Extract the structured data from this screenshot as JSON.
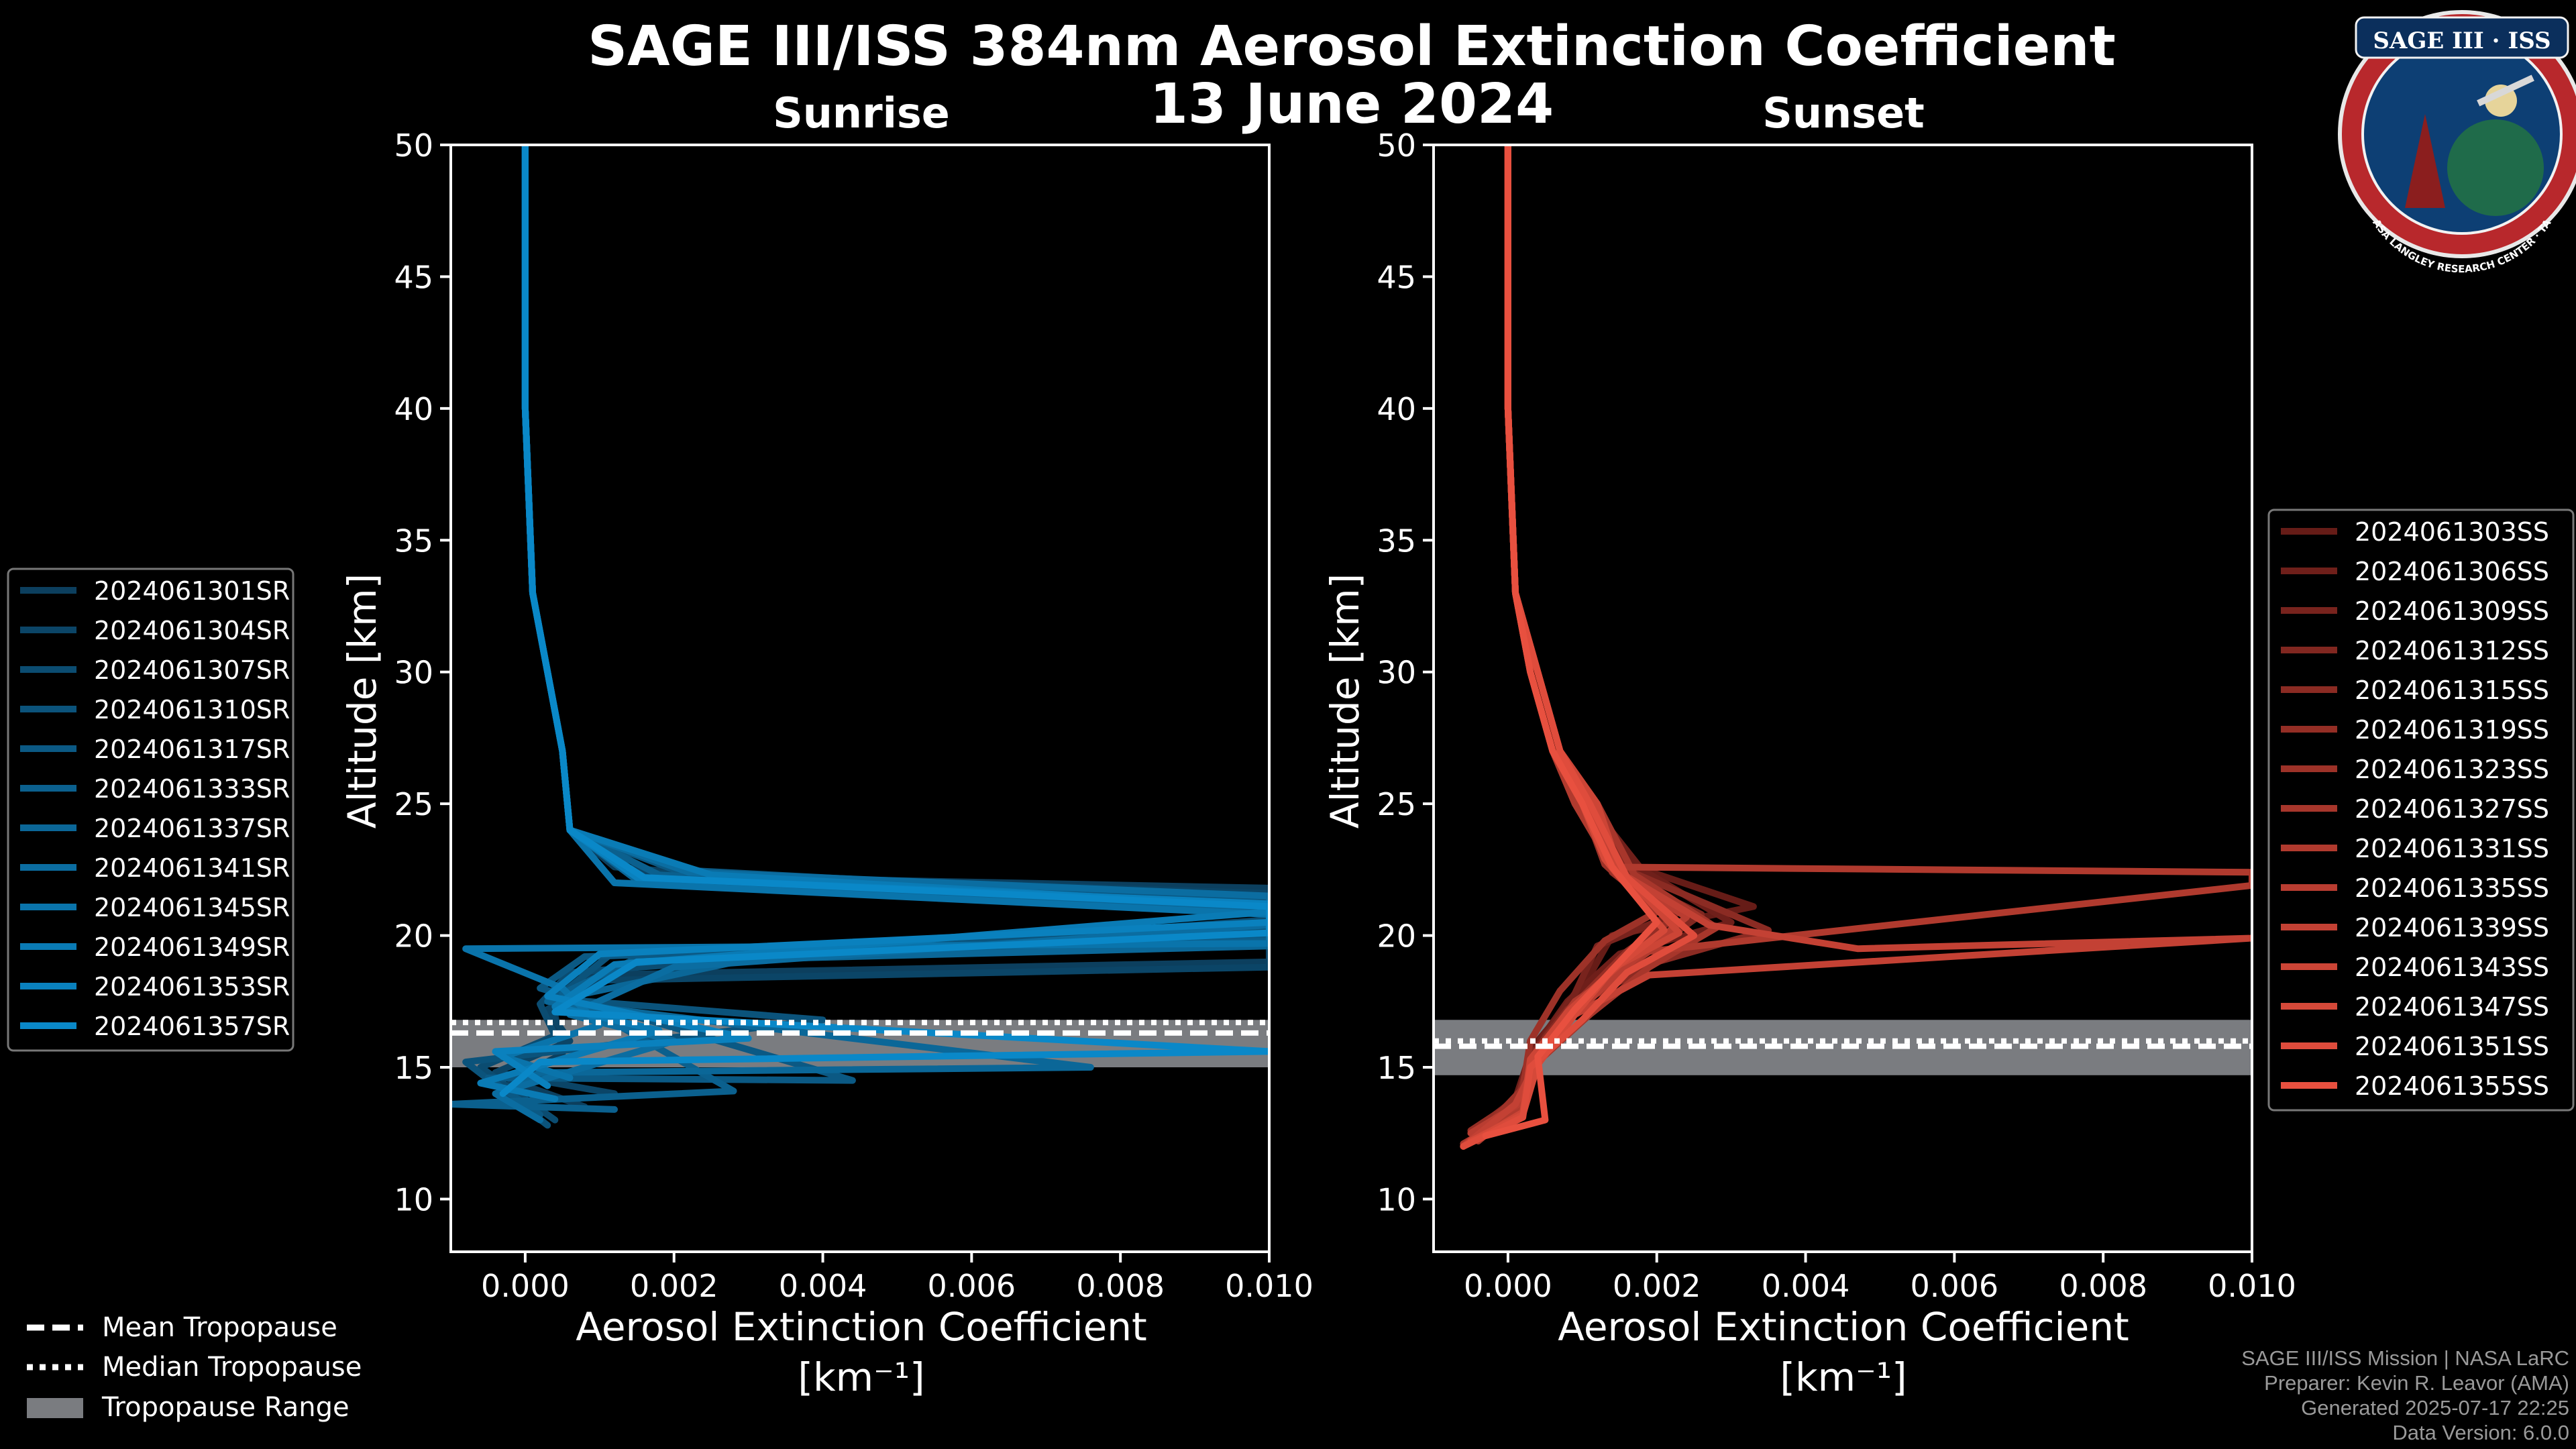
{
  "title_line1": "SAGE III/ISS 384nm Aerosol Extinction Coefficient",
  "title_line2": "13 June 2024",
  "logo": {
    "text": "SAGE III · ISS",
    "ring_text": "BALL · NASA LANGLEY RESEARCH CENTER · TAS-I · ESA",
    "icon": "mission-patch-icon"
  },
  "colors": {
    "sunrise_base": "#0a88c8",
    "sunset_base": "#e8503f",
    "tropopause_range": "#7a7c80",
    "background": "#000000"
  },
  "tropopause_legend": {
    "mean": "Mean Tropopause",
    "median": "Median Tropopause",
    "range": "Tropopause Range"
  },
  "credits": [
    "SAGE III/ISS Mission | NASA LaRC",
    "Preparer: Kevin R. Leavor (AMA)",
    "Generated 2025-07-17 22:25",
    "Data Version: 6.0.0"
  ],
  "chart_data": [
    {
      "type": "line",
      "title": "Sunrise",
      "xlabel": "Aerosol Extinction Coefficient",
      "xlabel_units": "[km⁻¹]",
      "ylabel": "Altitude [km]",
      "xlim": [
        -0.001,
        0.01
      ],
      "ylim": [
        8,
        50
      ],
      "xticks": [
        0.0,
        0.002,
        0.004,
        0.006,
        0.008,
        0.01
      ],
      "xtick_labels": [
        "0.000",
        "0.002",
        "0.004",
        "0.006",
        "0.008",
        "0.010"
      ],
      "yticks": [
        10,
        15,
        20,
        25,
        30,
        35,
        40,
        45,
        50
      ],
      "tropopause": {
        "mean": 16.3,
        "median": 16.7,
        "range": [
          15.0,
          16.8
        ]
      },
      "series": [
        {
          "name": "2024061301SR",
          "x": [
            0.0,
            0.0,
            0.0001,
            0.0003,
            0.0005,
            0.0006,
            0.0012,
            0.003,
            0.01,
            0.01,
            0.0008,
            0.0004,
            0.0005,
            -0.0002,
            0.0008
          ],
          "y": [
            50,
            40,
            33,
            30,
            27,
            24,
            22.6,
            22.2,
            21.8,
            19.0,
            18.5,
            17.0,
            15.5,
            14.5,
            13.5
          ]
        },
        {
          "name": "2024061304SR",
          "x": [
            0.0,
            0.0,
            0.0001,
            0.0003,
            0.0005,
            0.0006,
            0.0014,
            0.01,
            0.01,
            0.001,
            0.0003,
            0.0006,
            -0.0004,
            0.0012
          ],
          "y": [
            50,
            40,
            33,
            30,
            27,
            24,
            22.4,
            21.6,
            18.8,
            18.3,
            17.2,
            16.0,
            14.8,
            14.0
          ]
        },
        {
          "name": "2024061307SR",
          "x": [
            0.0,
            0.0,
            0.0001,
            0.0003,
            0.0005,
            0.0006,
            0.0016,
            0.01,
            0.01,
            0.0006,
            0.0002,
            0.0004,
            -0.0006,
            0.0004
          ],
          "y": [
            50,
            40,
            33,
            30,
            27,
            24,
            22.2,
            21.4,
            20.6,
            18.6,
            17.4,
            16.2,
            15.0,
            13.0
          ]
        },
        {
          "name": "2024061310SR",
          "x": [
            0.0,
            0.0,
            0.0001,
            0.0003,
            0.0005,
            0.0006,
            0.0012,
            0.01,
            0.01,
            0.0012,
            0.0004,
            0.004,
            -0.0008,
            0.0003
          ],
          "y": [
            50,
            40,
            33,
            30,
            27,
            24,
            22.0,
            21.2,
            20.2,
            19.4,
            17.6,
            16.8,
            15.2,
            12.8
          ]
        },
        {
          "name": "2024061317SR",
          "x": [
            0.0,
            0.0,
            0.0001,
            0.0003,
            0.0005,
            0.0006,
            0.002,
            0.01,
            0.01,
            0.0008,
            0.0002,
            0.0044,
            -0.0005,
            0.0002
          ],
          "y": [
            50,
            40,
            33,
            30,
            27,
            24,
            22.5,
            21.3,
            20.0,
            19.2,
            18.0,
            14.5,
            14.6,
            13.2
          ]
        },
        {
          "name": "2024061333SR",
          "x": [
            0.0,
            0.0,
            0.0001,
            0.0003,
            0.0005,
            0.0006,
            0.0018,
            0.01,
            0.01,
            0.0014,
            0.0005,
            0.0028,
            -0.001,
            0.0012
          ],
          "y": [
            50,
            40,
            33,
            30,
            27,
            24,
            22.3,
            21.0,
            19.8,
            19.0,
            17.8,
            14.1,
            13.6,
            13.4
          ]
        },
        {
          "name": "2024061337SR",
          "x": [
            0.0,
            0.0,
            0.0001,
            0.0003,
            0.0005,
            0.0006,
            0.0015,
            0.01,
            0.01,
            0.003,
            0.0003,
            0.0076,
            0.0002,
            -0.0002
          ],
          "y": [
            50,
            40,
            33,
            30,
            27,
            24,
            22.1,
            21.0,
            19.6,
            19.1,
            17.5,
            15.0,
            14.8,
            14.2
          ]
        },
        {
          "name": "2024061341SR",
          "x": [
            0.0,
            0.0,
            0.0001,
            0.0003,
            0.0005,
            0.0006,
            0.0022,
            0.01,
            0.01,
            0.002,
            0.0006,
            0.002,
            -0.0004,
            0.0002
          ],
          "y": [
            50,
            40,
            33,
            30,
            27,
            24,
            22.4,
            21.5,
            20.4,
            18.8,
            17.0,
            16.0,
            14.0,
            13.0
          ]
        },
        {
          "name": "2024061345SR",
          "x": [
            0.0,
            0.0,
            0.0001,
            0.0003,
            0.0005,
            0.0006,
            0.0012,
            0.01,
            0.01,
            -0.0008,
            0.0005,
            0.001,
            -0.0003,
            0.0006
          ],
          "y": [
            50,
            40,
            33,
            30,
            27,
            24,
            22.0,
            20.8,
            19.7,
            19.5,
            18.0,
            16.6,
            15.4,
            14.6
          ]
        },
        {
          "name": "2024061349SR",
          "x": [
            0.0,
            0.0,
            0.0001,
            0.0003,
            0.0005,
            0.0006,
            0.0025,
            0.01,
            0.01,
            0.0012,
            0.0004,
            0.0018,
            -0.0006,
            0.0004
          ],
          "y": [
            50,
            40,
            33,
            30,
            27,
            24,
            22.3,
            21.1,
            20.9,
            18.9,
            17.3,
            16.4,
            14.4,
            13.8
          ]
        },
        {
          "name": "2024061353SR",
          "x": [
            0.0,
            0.0,
            0.0001,
            0.0003,
            0.0005,
            0.0006,
            0.0015,
            0.01,
            0.01,
            0.001,
            0.0003,
            0.003,
            -0.0004,
            0.0003
          ],
          "y": [
            50,
            40,
            33,
            30,
            27,
            24,
            22.2,
            21.2,
            20.5,
            19.3,
            17.7,
            16.1,
            15.6,
            14.3
          ]
        },
        {
          "name": "2024061357SR",
          "x": [
            0.0,
            0.0,
            0.0001,
            0.0003,
            0.0005,
            0.0006,
            0.0016,
            0.01,
            0.01,
            0.0015,
            0.0004,
            0.01,
            0.0002,
            -0.0003
          ],
          "y": [
            50,
            40,
            33,
            30,
            27,
            24,
            22.2,
            21.1,
            20.1,
            19.0,
            17.1,
            15.6,
            15.2,
            14.0
          ]
        }
      ]
    },
    {
      "type": "line",
      "title": "Sunset",
      "xlabel": "Aerosol Extinction Coefficient",
      "xlabel_units": "[km⁻¹]",
      "ylabel": "Altitude [km]",
      "xlim": [
        -0.001,
        0.01
      ],
      "ylim": [
        8,
        50
      ],
      "xticks": [
        0.0,
        0.002,
        0.004,
        0.006,
        0.008,
        0.01
      ],
      "xtick_labels": [
        "0.000",
        "0.002",
        "0.004",
        "0.006",
        "0.008",
        "0.010"
      ],
      "yticks": [
        10,
        15,
        20,
        25,
        30,
        35,
        40,
        45,
        50
      ],
      "tropopause": {
        "mean": 15.8,
        "median": 16.0,
        "range": [
          14.7,
          16.8
        ]
      },
      "series": [
        {
          "name": "2024061303SS",
          "x": [
            0.0,
            0.0,
            0.0001,
            0.0003,
            0.0006,
            0.001,
            0.0013,
            0.0033,
            0.0014,
            0.001,
            0.0004,
            0.0002,
            -0.0004
          ],
          "y": [
            50,
            40,
            33,
            30,
            27,
            25,
            23.0,
            21.1,
            20.0,
            18.0,
            16.0,
            14.0,
            12.2
          ]
        },
        {
          "name": "2024061306SS",
          "x": [
            0.0,
            0.0,
            0.0001,
            0.0004,
            0.0007,
            0.0011,
            0.0018,
            0.003,
            0.0015,
            0.0008,
            0.0003,
            0.0001,
            -0.0005
          ],
          "y": [
            50,
            40,
            33,
            30,
            27,
            25,
            22.5,
            20.5,
            19.3,
            17.5,
            15.5,
            13.8,
            12.5
          ]
        },
        {
          "name": "2024061309SS",
          "x": [
            0.0,
            0.0,
            0.0001,
            0.0003,
            0.0006,
            0.0009,
            0.0014,
            0.0024,
            0.0012,
            0.0009,
            0.0005,
            0.0003,
            -0.0003
          ],
          "y": [
            50,
            40,
            33,
            30,
            27,
            25,
            22.8,
            21.0,
            19.6,
            17.8,
            16.2,
            14.4,
            12.8
          ]
        },
        {
          "name": "2024061312SS",
          "x": [
            0.0,
            0.0,
            0.0001,
            0.0004,
            0.0007,
            0.0012,
            0.0016,
            0.0026,
            0.0018,
            0.001,
            0.0004,
            0.0002,
            -0.0006
          ],
          "y": [
            50,
            40,
            33,
            30,
            27,
            25,
            22.2,
            20.8,
            19.2,
            17.6,
            15.8,
            13.6,
            12.0
          ]
        },
        {
          "name": "2024061315SS",
          "x": [
            0.0,
            0.0,
            0.0001,
            0.0003,
            0.0006,
            0.001,
            0.0015,
            0.0035,
            0.002,
            0.0008,
            0.0003,
            0.0001,
            -0.0004
          ],
          "y": [
            50,
            40,
            33,
            30,
            27,
            25,
            22.6,
            20.2,
            19.0,
            17.2,
            15.4,
            13.5,
            12.3
          ]
        },
        {
          "name": "2024061319SS",
          "x": [
            0.0,
            0.0,
            0.0001,
            0.0004,
            0.0007,
            0.0011,
            0.0014,
            0.0022,
            0.0016,
            0.0009,
            0.0004,
            0.0002,
            -0.0005
          ],
          "y": [
            50,
            40,
            33,
            30,
            27,
            25,
            22.4,
            20.6,
            19.4,
            17.4,
            15.6,
            13.9,
            12.6
          ]
        },
        {
          "name": "2024061323SS",
          "x": [
            0.0,
            0.0,
            0.0001,
            0.0003,
            0.0006,
            0.001,
            0.0013,
            0.002,
            0.0013,
            0.0007,
            0.0003,
            0.0002,
            -0.0004
          ],
          "y": [
            50,
            40,
            33,
            30,
            27,
            25,
            22.7,
            20.9,
            19.8,
            17.9,
            16.0,
            14.2,
            12.4
          ]
        },
        {
          "name": "2024061327SS",
          "x": [
            0.0,
            0.0,
            0.0001,
            0.0004,
            0.0007,
            0.0012,
            0.0017,
            0.0028,
            0.0019,
            0.0011,
            0.0004,
            0.0002,
            -0.0006
          ],
          "y": [
            50,
            40,
            33,
            30,
            27,
            25,
            22.3,
            20.3,
            18.8,
            17.0,
            15.2,
            13.4,
            12.1
          ]
        },
        {
          "name": "2024061331SS",
          "x": [
            0.0,
            0.0,
            0.0001,
            0.0003,
            0.0006,
            0.0009,
            0.0014,
            0.01,
            0.01,
            0.0019,
            0.0009,
            0.0004,
            0.0002,
            -0.0004
          ],
          "y": [
            50,
            40,
            33,
            30,
            27,
            25,
            22.6,
            22.4,
            21.9,
            19.4,
            17.5,
            15.6,
            13.6,
            12.2
          ]
        },
        {
          "name": "2024061335SS",
          "x": [
            0.0,
            0.0,
            0.0001,
            0.0004,
            0.0007,
            0.0011,
            0.0016,
            0.0024,
            0.0017,
            0.001,
            0.0004,
            0.0002,
            -0.0005
          ],
          "y": [
            50,
            40,
            33,
            30,
            27,
            25,
            22.1,
            20.7,
            19.1,
            17.3,
            15.5,
            13.7,
            12.5
          ]
        },
        {
          "name": "2024061339SS",
          "x": [
            0.0,
            0.0,
            0.0001,
            0.0003,
            0.0006,
            0.001,
            0.0015,
            0.0027,
            0.0047,
            0.01,
            0.0019,
            0.0009,
            0.0004,
            0.0001,
            -0.0006
          ],
          "y": [
            50,
            40,
            33,
            30,
            27,
            25,
            22.4,
            20.4,
            19.5,
            19.9,
            18.5,
            17.0,
            15.3,
            13.6,
            12.0
          ]
        },
        {
          "name": "2024061343SS",
          "x": [
            0.0,
            0.0,
            0.0001,
            0.0004,
            0.0007,
            0.0012,
            0.0015,
            0.0023,
            0.0015,
            0.0008,
            0.0003,
            0.0002,
            -0.0004
          ],
          "y": [
            50,
            40,
            33,
            30,
            27,
            25,
            22.5,
            20.1,
            18.9,
            17.1,
            15.3,
            13.3,
            12.3
          ]
        },
        {
          "name": "2024061347SS",
          "x": [
            0.0,
            0.0,
            0.0001,
            0.0003,
            0.0006,
            0.001,
            0.0013,
            0.0021,
            0.0014,
            0.0009,
            0.0004,
            0.0002,
            -0.0005
          ],
          "y": [
            50,
            40,
            33,
            30,
            27,
            25,
            22.9,
            20.2,
            18.7,
            17.0,
            15.1,
            13.2,
            12.2
          ]
        },
        {
          "name": "2024061351SS",
          "x": [
            0.0,
            0.0,
            0.0001,
            0.0004,
            0.0007,
            0.0011,
            0.0016,
            0.0025,
            0.0016,
            0.001,
            0.0003,
            0.0002,
            -0.0006
          ],
          "y": [
            50,
            40,
            33,
            30,
            27,
            25,
            22.2,
            20.0,
            18.6,
            16.8,
            15.0,
            13.1,
            12.0
          ]
        },
        {
          "name": "2024061355SS",
          "x": [
            0.0,
            0.0,
            0.0001,
            0.0003,
            0.0006,
            0.001,
            0.0014,
            0.002,
            0.0015,
            0.0009,
            0.0004,
            0.0005,
            -0.0003
          ],
          "y": [
            50,
            40,
            33,
            30,
            27,
            25,
            22.6,
            20.5,
            19.0,
            17.2,
            15.4,
            13.0,
            12.4
          ]
        }
      ]
    }
  ]
}
